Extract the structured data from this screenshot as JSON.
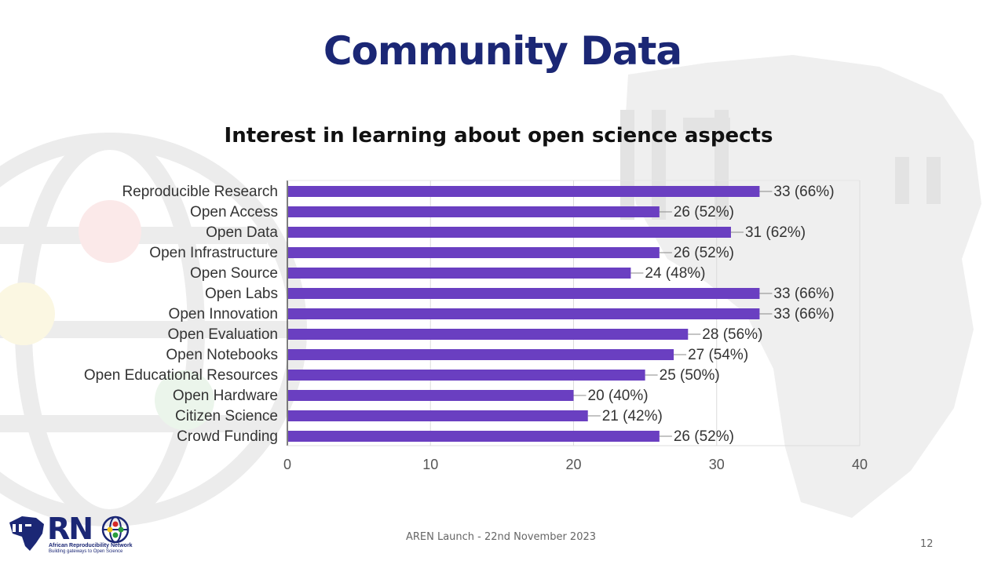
{
  "slide": {
    "title": "Community Data",
    "footer": "AREN Launch - 22nd November 2023",
    "page_number": "12"
  },
  "logo": {
    "letters": "RN",
    "name": "African Reproducibility Network",
    "tagline": "Building gateways to Open Science",
    "icons": [
      "africa-map-icon",
      "globe-icon"
    ]
  },
  "colors": {
    "title": "#1b2775",
    "bar": "#6a3fc1",
    "watermark": "#ececec"
  },
  "chart_data": {
    "type": "bar",
    "orientation": "horizontal",
    "title": "Interest in learning about  open science aspects",
    "categories": [
      "Reproducible Research",
      "Open Access",
      "Open Data",
      "Open Infrastructure",
      "Open Source",
      "Open Labs",
      "Open Innovation",
      "Open Evaluation",
      "Open Notebooks",
      "Open Educational Resources",
      "Open Hardware",
      "Citizen Science",
      "Crowd Funding"
    ],
    "values": [
      33,
      26,
      31,
      26,
      24,
      33,
      33,
      28,
      27,
      25,
      20,
      21,
      26
    ],
    "data_labels": [
      "33 (66%)",
      "26 (52%)",
      "31 (62%)",
      "26 (52%)",
      "24 (48%)",
      "33 (66%)",
      "33 (66%)",
      "28 (56%)",
      "27 (54%)",
      "25 (50%)",
      "20 (40%)",
      "21 (42%)",
      "26 (52%)"
    ],
    "x_ticks": [
      0,
      10,
      20,
      30,
      40
    ],
    "xlim": [
      0,
      40
    ],
    "xlabel": "",
    "ylabel": "",
    "grid": true,
    "legend": false
  }
}
